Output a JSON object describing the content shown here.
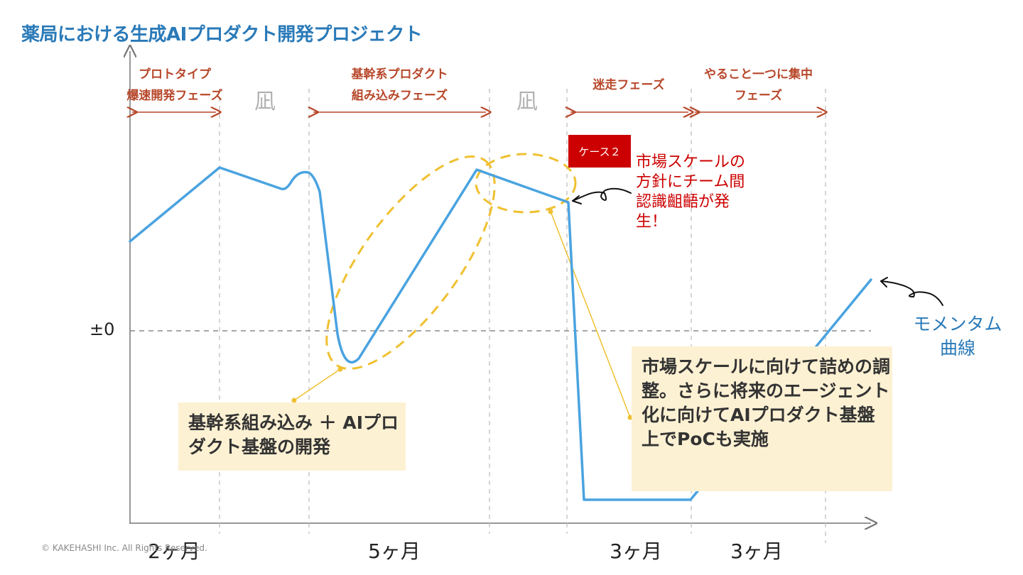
{
  "title": "薬局における生成AIプロダクト開発プロジェクト",
  "phases": [
    {
      "line1": "プロトタイプ",
      "line2": "爆速開発フェーズ"
    },
    {
      "line1": "基幹系プロダクト",
      "line2": "組み込みフェーズ"
    },
    {
      "line1": "迷走フェーズ",
      "line2": ""
    },
    {
      "line1": "やること一つに集中",
      "line2": "フェーズ"
    }
  ],
  "nagi": [
    "凪",
    "凪"
  ],
  "zero_label": "±0",
  "months": [
    "2ヶ月",
    "5ヶ月",
    "3ヶ月",
    "3ヶ月"
  ],
  "copyright": "© KAKEHASHI Inc. All Rights Reserved.",
  "case_badge": "ケース２",
  "red_note": "市場スケールの方針にチーム間認識齟齬が発生！",
  "box1": "基幹系組み込み ＋ AIプロダクト基盤の開発",
  "box2": "市場スケールに向けて詰めの調整。さらに将来のエージェント化に向けてAIプロダクト基盤上でPoCも実施",
  "momentum_label": "モメンタム曲線",
  "colors": {
    "title": "#2a7ab8",
    "curve": "#4aa3e0",
    "phase": "#b7472a",
    "highlight": "#f0c030",
    "alert": "#cc0000",
    "box_bg": "#fdf1d3"
  }
}
